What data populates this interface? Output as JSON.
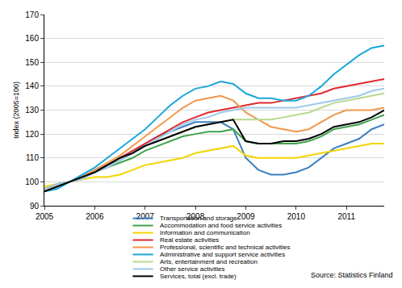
{
  "chart_data": {
    "type": "line",
    "y_label": "Index (2005=100)",
    "source": "Source: Statistics Finland",
    "x": [
      2005,
      2005.25,
      2005.5,
      2005.75,
      2006,
      2006.25,
      2006.5,
      2006.75,
      2007,
      2007.25,
      2007.5,
      2007.75,
      2008,
      2008.25,
      2008.5,
      2008.75,
      2009,
      2009.25,
      2009.5,
      2009.75,
      2010,
      2010.25,
      2010.5,
      2010.75,
      2011,
      2011.25,
      2011.5,
      2011.75
    ],
    "xlim": [
      2005,
      2011.75
    ],
    "xticks": [
      2005,
      2006,
      2007,
      2008,
      2009,
      2010,
      2011
    ],
    "ylim": [
      90,
      170
    ],
    "yticks": [
      90,
      100,
      110,
      120,
      130,
      140,
      150,
      160,
      170
    ],
    "grid": true,
    "series": [
      {
        "name": "Transportation and storage",
        "color": "#3a7fc1",
        "values": [
          96,
          98,
          100,
          102,
          105,
          107,
          109,
          112,
          116,
          119,
          121,
          123,
          125,
          125,
          125,
          122,
          110,
          105,
          103,
          103,
          104,
          106,
          110,
          114,
          116,
          118,
          122,
          124
        ]
      },
      {
        "name": "Accommodation and food service activities",
        "color": "#3fa34d",
        "values": [
          97,
          99,
          100,
          102,
          104,
          106,
          108,
          110,
          113,
          115,
          117,
          119,
          120,
          121,
          121,
          122,
          117,
          116,
          116,
          116,
          116,
          117,
          119,
          122,
          123,
          124,
          126,
          128
        ]
      },
      {
        "name": "Information and communication",
        "color": "#f2d400",
        "values": [
          98,
          99,
          100,
          101,
          102,
          102,
          103,
          105,
          107,
          108,
          109,
          110,
          112,
          113,
          114,
          115,
          111,
          110,
          110,
          110,
          110,
          111,
          112,
          113,
          114,
          115,
          116,
          116
        ]
      },
      {
        "name": "Real estate activities",
        "color": "#e0282e",
        "values": [
          97,
          99,
          100,
          102,
          104,
          107,
          110,
          113,
          116,
          119,
          122,
          125,
          127,
          129,
          130,
          131,
          132,
          133,
          133,
          134,
          135,
          136,
          137,
          139,
          140,
          141,
          142,
          143
        ]
      },
      {
        "name": "Professional, scientific and technical activities",
        "color": "#f0984a",
        "values": [
          96,
          98,
          100,
          102,
          105,
          108,
          111,
          115,
          119,
          123,
          127,
          131,
          134,
          135,
          136,
          134,
          129,
          126,
          123,
          122,
          121,
          122,
          125,
          128,
          130,
          130,
          130,
          131
        ]
      },
      {
        "name": "Administrative and support service activities",
        "color": "#1aa7d8",
        "values": [
          96,
          97,
          100,
          103,
          106,
          110,
          114,
          118,
          122,
          127,
          132,
          136,
          139,
          140,
          142,
          141,
          137,
          135,
          135,
          134,
          134,
          136,
          140,
          145,
          149,
          153,
          156,
          157
        ]
      },
      {
        "name": "Arts, entertainment and recreation",
        "color": "#b7d98b",
        "values": [
          97,
          99,
          100,
          102,
          104,
          106,
          109,
          112,
          115,
          117,
          119,
          121,
          123,
          124,
          125,
          126,
          126,
          126,
          126,
          127,
          128,
          129,
          131,
          133,
          134,
          135,
          136,
          137
        ]
      },
      {
        "name": "Other service activities",
        "color": "#9ec9e8",
        "values": [
          97,
          99,
          100,
          101,
          104,
          106,
          109,
          112,
          115,
          118,
          121,
          124,
          126,
          127,
          129,
          130,
          131,
          131,
          131,
          131,
          131,
          132,
          133,
          134,
          135,
          136,
          138,
          139
        ]
      },
      {
        "name": "Services, total (excl. trade)",
        "color": "#000000",
        "values": [
          96,
          98,
          100,
          102,
          104,
          107,
          110,
          112,
          115,
          117,
          119,
          121,
          123,
          124,
          125,
          126,
          117,
          116,
          116,
          117,
          117,
          118,
          120,
          123,
          124,
          125,
          127,
          130
        ]
      }
    ]
  }
}
